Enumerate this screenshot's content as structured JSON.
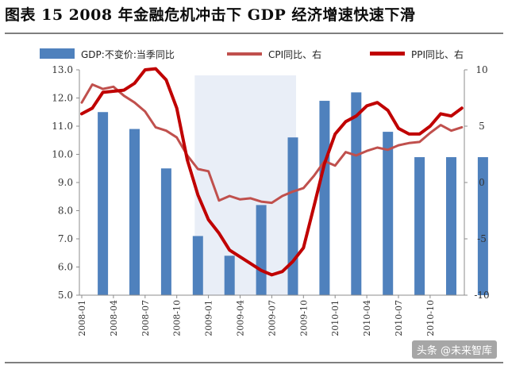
{
  "title": "图表 15 2008 年金融危机冲击下 GDP 经济增速快速下滑",
  "watermark": "头条 @未来智库",
  "colors": {
    "gdp": "#4f81bd",
    "cpi": "#c0504d",
    "ppi": "#c00000",
    "highlight": "#e9eef7"
  },
  "chart_data": {
    "type": "bar+line",
    "legend_position": "top",
    "legend": [
      "GDP:不变价:当季同比",
      "CPI同比、右",
      "PPI同比、右"
    ],
    "highlight_range": [
      "2008-12",
      "2009-09"
    ],
    "left_axis": {
      "min": 5.0,
      "max": 13.0,
      "ticks": [
        "5.0",
        "6.0",
        "7.0",
        "8.0",
        "9.0",
        "10.0",
        "11.0",
        "12.0",
        "13.0"
      ]
    },
    "right_axis": {
      "min": -10,
      "max": 10,
      "ticks": [
        "-10",
        "-5",
        "0",
        "5",
        "10"
      ]
    },
    "x_ticks": [
      "2008-01",
      "2008-04",
      "2008-07",
      "2008-10",
      "2009-01",
      "2009-04",
      "2009-07",
      "2009-10",
      "2010-01",
      "2010-04",
      "2010-07",
      "2010-10"
    ],
    "gdp": {
      "name": "GDP:不变价:当季同比",
      "months": [
        "2008-03",
        "2008-06",
        "2008-09",
        "2008-12",
        "2009-03",
        "2009-06",
        "2009-09",
        "2009-12",
        "2010-03",
        "2010-06",
        "2010-09",
        "2010-12",
        "2011-03"
      ],
      "values": [
        11.5,
        10.9,
        9.5,
        7.1,
        6.4,
        8.2,
        10.6,
        11.9,
        12.2,
        10.8,
        9.9,
        9.9,
        9.9
      ]
    },
    "cpi": {
      "name": "CPI同比、右",
      "start": "2008-01",
      "values": [
        7.1,
        8.7,
        8.3,
        8.5,
        7.7,
        7.1,
        6.3,
        4.9,
        4.6,
        4.0,
        2.4,
        1.2,
        1.0,
        -1.6,
        -1.2,
        -1.5,
        -1.4,
        -1.7,
        -1.8,
        -1.2,
        -0.8,
        -0.5,
        0.6,
        1.9,
        1.5,
        2.7,
        2.4,
        2.8,
        3.1,
        2.9,
        3.3,
        3.5,
        3.6,
        4.4,
        5.1,
        4.6,
        4.9
      ]
    },
    "ppi": {
      "name": "PPI同比、右",
      "start": "2008-01",
      "values": [
        6.1,
        6.6,
        8.0,
        8.1,
        8.2,
        8.8,
        10.0,
        10.1,
        9.1,
        6.6,
        2.0,
        -1.1,
        -3.3,
        -4.5,
        -6.0,
        -6.6,
        -7.2,
        -7.8,
        -8.2,
        -7.9,
        -7.0,
        -5.8,
        -2.1,
        1.7,
        4.3,
        5.4,
        5.9,
        6.8,
        7.1,
        6.4,
        4.8,
        4.3,
        4.3,
        5.0,
        6.1,
        5.9,
        6.6
      ]
    }
  }
}
